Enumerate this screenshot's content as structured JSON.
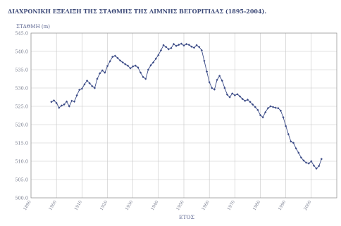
{
  "chart_data": {
    "type": "line",
    "title": "ΔΙΑΧΡΟΝΙΚΗ ΕΞΕΛΙΞΗ ΤΗΣ ΣΤΑΘΜΗΣ ΤΗΣ ΛΙΜΝΗΣ ΒΕΓΟΡΙΤΙΔΑΣ (1895-2004).",
    "ylabel": "ΣΤΑΘΜΗ (m)",
    "xlabel": "ΕΤΟΣ",
    "xlim": [
      1890,
      2010
    ],
    "ylim": [
      500,
      545
    ],
    "x_ticks": [
      "1890",
      "1900",
      "1910",
      "1920",
      "1930",
      "1940",
      "1950",
      "1960",
      "1970",
      "1980",
      "1990",
      "2000"
    ],
    "y_ticks": [
      "545.0",
      "540.0",
      "535.0",
      "530.0",
      "525.0",
      "520.0",
      "515.0",
      "510.0",
      "505.0",
      "500.0"
    ],
    "grid": true,
    "marker": "diamond",
    "colors": {
      "series": "#3a4a86",
      "grid": "#c7c7c7",
      "axis": "#9a9a9a"
    },
    "series": [
      {
        "x": [
          1898,
          1899,
          1900,
          1901,
          1902,
          1903,
          1904,
          1905,
          1906,
          1907,
          1908,
          1909,
          1910,
          1911,
          1912,
          1913,
          1914,
          1915,
          1916,
          1917,
          1918,
          1919,
          1920,
          1921,
          1922,
          1923,
          1924,
          1925,
          1926,
          1927,
          1928,
          1929,
          1930,
          1931,
          1932,
          1933,
          1934,
          1935,
          1936,
          1937,
          1938,
          1939,
          1940,
          1941,
          1942,
          1943,
          1944,
          1945,
          1946,
          1947,
          1948,
          1949,
          1950,
          1951,
          1952,
          1953,
          1954,
          1955,
          1956,
          1957,
          1958,
          1959,
          1960,
          1961,
          1962,
          1963,
          1964,
          1965,
          1966,
          1967,
          1968,
          1969,
          1970,
          1971,
          1972,
          1973,
          1974,
          1975,
          1976,
          1977,
          1978,
          1979,
          1980,
          1981,
          1982,
          1983,
          1984,
          1985,
          1986,
          1987,
          1988,
          1989,
          1990,
          1991,
          1992,
          1993,
          1994,
          1995,
          1996,
          1997,
          1998,
          1999,
          2000,
          2001,
          2002,
          2003,
          2004
        ],
        "y": [
          526.2,
          526.6,
          525.9,
          524.6,
          525.2,
          525.5,
          526.3,
          525.0,
          526.5,
          526.3,
          528.0,
          529.5,
          529.8,
          531.0,
          532.0,
          531.3,
          530.5,
          530.0,
          532.5,
          534.0,
          534.8,
          534.2,
          536.0,
          537.3,
          538.5,
          538.8,
          538.2,
          537.5,
          537.0,
          536.5,
          536.1,
          535.4,
          535.9,
          536.1,
          535.6,
          534.2,
          533.0,
          532.5,
          535.0,
          536.2,
          537.0,
          538.0,
          539.0,
          540.3,
          541.7,
          541.2,
          540.6,
          540.9,
          542.0,
          541.5,
          541.8,
          542.1,
          541.6,
          542.0,
          541.8,
          541.3,
          541.0,
          541.7,
          541.2,
          540.3,
          537.4,
          534.5,
          531.6,
          530.0,
          529.6,
          532.2,
          533.3,
          532.0,
          530.0,
          528.2,
          527.5,
          528.5,
          528.0,
          528.3,
          527.7,
          527.0,
          526.5,
          526.8,
          526.2,
          525.5,
          524.8,
          524.0,
          522.6,
          522.0,
          523.4,
          524.5,
          525.0,
          524.8,
          524.6,
          524.5,
          523.8,
          522.0,
          519.6,
          517.4,
          515.4,
          515.0,
          513.5,
          512.3,
          511.0,
          510.2,
          509.6,
          509.4,
          510.0,
          508.8,
          508.0,
          508.7,
          510.6
        ]
      }
    ]
  }
}
